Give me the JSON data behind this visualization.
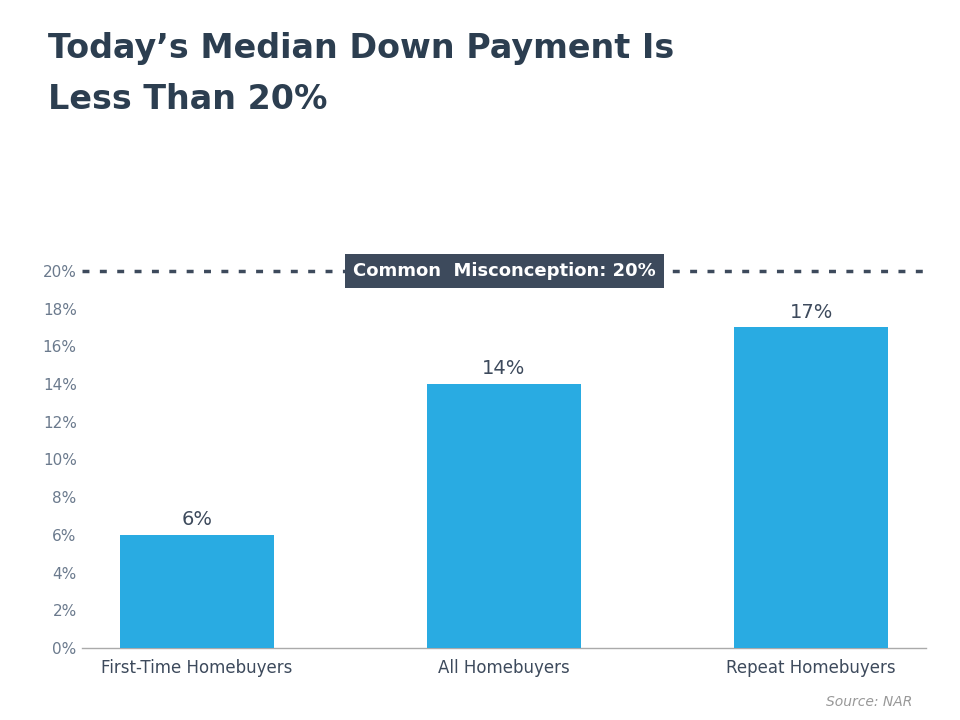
{
  "title_line1": "Today’s Median Down Payment Is",
  "title_line2": "Less Than 20%",
  "categories": [
    "First-Time Homebuyers",
    "All Homebuyers",
    "Repeat Homebuyers"
  ],
  "values": [
    6,
    14,
    17
  ],
  "bar_color": "#29ABE2",
  "misconception_value": 20,
  "misconception_label": "Common  Misconception: 20%",
  "misconception_box_color": "#3D4A5C",
  "misconception_text_color": "#FFFFFF",
  "dotted_line_color": "#3D4A5C",
  "ytick_color": "#6B7A8D",
  "xtick_color": "#3D4A5C",
  "title_color": "#2C3E50",
  "bar_label_color": "#3D4A5C",
  "source_text": "Source: NAR",
  "source_color": "#999999",
  "ylim": [
    0,
    21
  ],
  "yticks": [
    0,
    2,
    4,
    6,
    8,
    10,
    12,
    14,
    16,
    18,
    20
  ],
  "background_color": "#FFFFFF",
  "top_stripe_color": "#29ABE2"
}
